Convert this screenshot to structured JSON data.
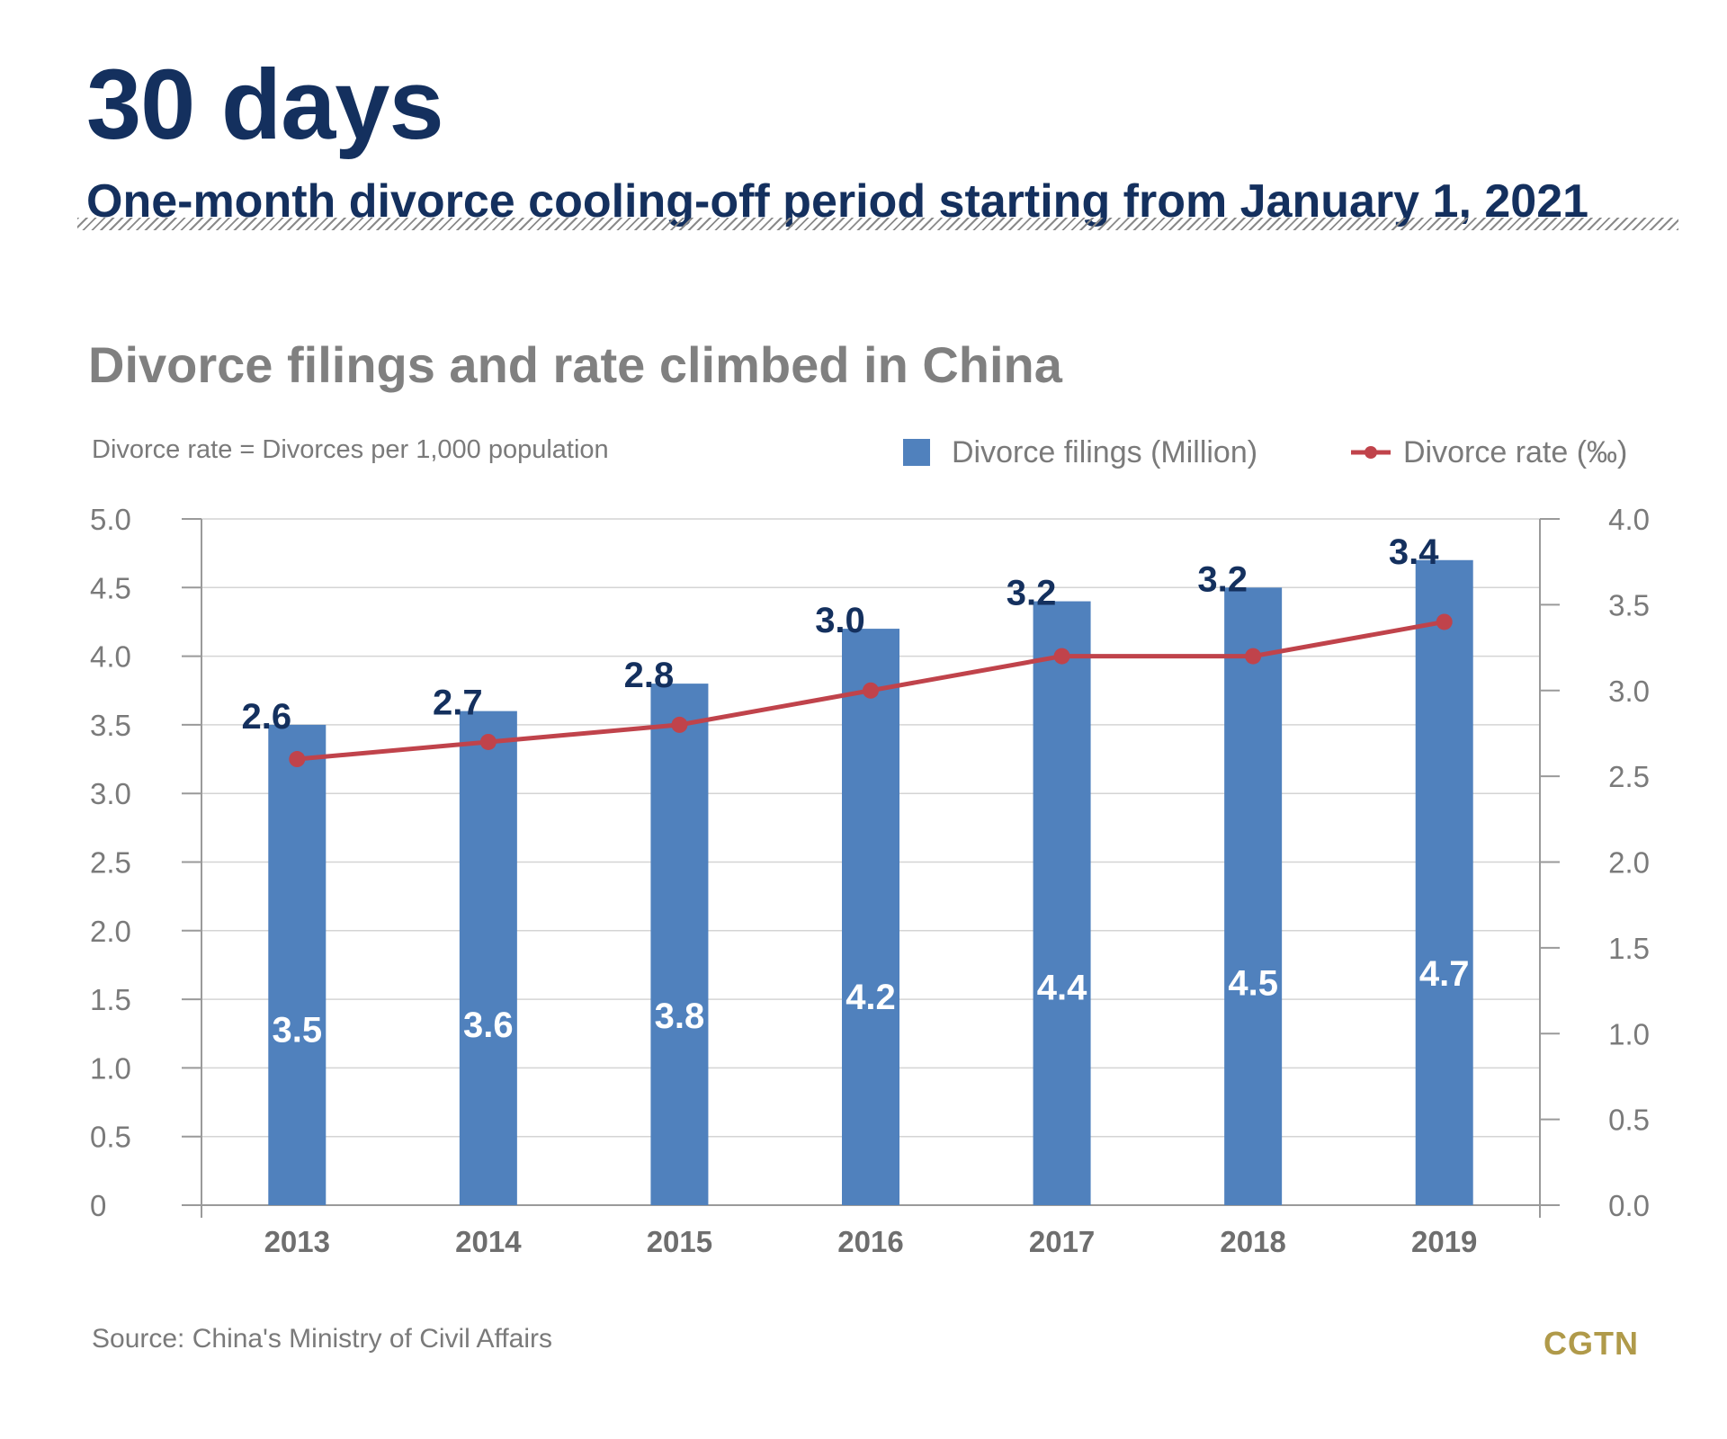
{
  "header": {
    "headline": "30 days",
    "subhead": "One-month divorce cooling-off period starting from January 1, 2021"
  },
  "note": "Divorce rate = Divorces per 1,000 population",
  "footer": {
    "source": "Source: China's Ministry of Civil Affairs",
    "brand": "CGTN"
  },
  "colors": {
    "bar": "#5081bd",
    "line": "#c0434b",
    "headline": "#14305e",
    "brand": "#b09a4a"
  },
  "chart_data": {
    "type": "bar",
    "title": "Divorce filings and rate climbed in China",
    "categories": [
      "2013",
      "2014",
      "2015",
      "2016",
      "2017",
      "2018",
      "2019"
    ],
    "series": [
      {
        "name": "Divorce filings (Million)",
        "chart_type": "bar",
        "axis": "left",
        "values": [
          3.5,
          3.6,
          3.8,
          4.2,
          4.4,
          4.5,
          4.7
        ],
        "labels": [
          "3.5",
          "3.6",
          "3.8",
          "4.2",
          "4.4",
          "4.5",
          "4.7"
        ]
      },
      {
        "name": "Divorce rate (‰)",
        "chart_type": "line",
        "axis": "right",
        "values": [
          2.6,
          2.7,
          2.8,
          3.0,
          3.2,
          3.2,
          3.4
        ],
        "labels": [
          "2.6",
          "2.7",
          "2.8",
          "3.0",
          "3.2",
          "3.2",
          "3.4"
        ]
      }
    ],
    "y_left": {
      "min": 0,
      "max": 5.0,
      "ticks": [
        "0",
        "0.5",
        "1.0",
        "1.5",
        "2.0",
        "2.5",
        "3.0",
        "3.5",
        "4.0",
        "4.5",
        "5.0"
      ]
    },
    "y_right": {
      "min": 0,
      "max": 4.0,
      "ticks": [
        "0.0",
        "0.5",
        "1.0",
        "1.5",
        "2.0",
        "2.5",
        "3.0",
        "3.5",
        "4.0"
      ]
    },
    "grid": true,
    "legend": "top-right"
  }
}
